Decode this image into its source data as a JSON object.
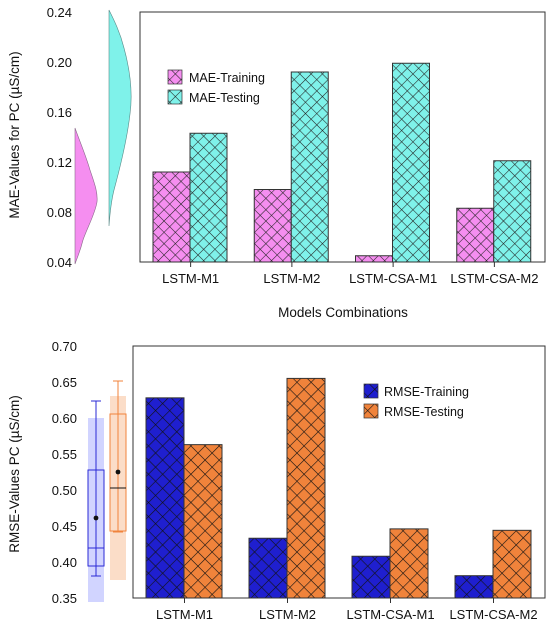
{
  "chart_data": [
    {
      "type": "bar",
      "title": "",
      "xlabel": "Models Combinations",
      "ylabel": "MAE-Values for  PC (µS/cm)",
      "ylim": [
        0.04,
        0.24
      ],
      "yticks": [
        "0.04",
        "0.08",
        "0.12",
        "0.16",
        "0.20",
        "0.24"
      ],
      "categories": [
        "LSTM-M1",
        "LSTM-M2",
        "LSTM-CSA-M1",
        "LSTM-CSA-M2"
      ],
      "series": [
        {
          "name": "MAE-Training",
          "values": [
            0.112,
            0.098,
            0.045,
            0.083
          ]
        },
        {
          "name": "MAE-Testing",
          "values": [
            0.143,
            0.192,
            0.199,
            0.121
          ]
        }
      ],
      "legend_position": "top-left",
      "side_plot": "distribution",
      "grid": false
    },
    {
      "type": "bar",
      "title": "",
      "xlabel": "",
      "ylabel": "RMSE-Values PC (µS/cm)",
      "ylim": [
        0.35,
        0.7
      ],
      "yticks": [
        "0.35",
        "0.40",
        "0.45",
        "0.50",
        "0.55",
        "0.60",
        "0.65",
        "0.70"
      ],
      "categories": [
        "LSTM-M1",
        "LSTM-M2",
        "LSTM-CSA-M1",
        "LSTM-CSA-M2"
      ],
      "series": [
        {
          "name": "RMSE-Training",
          "values": [
            0.628,
            0.433,
            0.408,
            0.381
          ]
        },
        {
          "name": "RMSE-Testing",
          "values": [
            0.563,
            0.655,
            0.446,
            0.444
          ]
        }
      ],
      "legend_position": "top-right",
      "side_plot": "boxplot",
      "grid": false
    }
  ],
  "colors": {
    "mae_training": "#f58ef0",
    "mae_testing": "#7ff2ea",
    "rmse_training": "#1f1fcf",
    "rmse_testing": "#f0833b",
    "box_training": "#2a2ad6",
    "box_testing": "#f0833b"
  }
}
